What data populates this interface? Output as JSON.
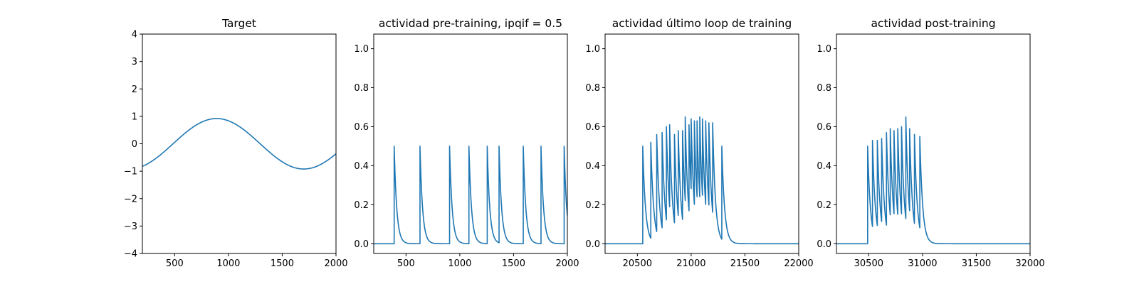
{
  "chart_data": [
    {
      "type": "line",
      "title": "Target",
      "xlabel": "",
      "ylabel": "",
      "xlim": [
        200,
        2000
      ],
      "ylim": [
        -4,
        4
      ],
      "xticks": [
        500,
        1000,
        1500,
        2000
      ],
      "yticks": [
        -4,
        -3,
        -2,
        -1,
        0,
        1,
        2,
        3,
        4
      ],
      "series": [
        {
          "kind": "sine",
          "amplitude": 0.92,
          "peak_x": 890,
          "period": 1620,
          "line_color": "#1f77b4"
        }
      ]
    },
    {
      "type": "line",
      "title": "actividad pre-training, ipqif = 0.5",
      "xlabel": "",
      "ylabel": "",
      "xlim": [
        200,
        2000
      ],
      "ylim": [
        -0.05,
        1.075
      ],
      "xticks": [
        500,
        1000,
        1500,
        2000
      ],
      "yticks": [
        0.0,
        0.2,
        0.4,
        0.6,
        0.8,
        1.0
      ],
      "series": [
        {
          "kind": "spikes",
          "baseline": 0,
          "decay": 24,
          "line_color": "#1f77b4",
          "spikes": [
            {
              "t": 390,
              "peak": 0.5
            },
            {
              "t": 630,
              "peak": 0.5
            },
            {
              "t": 905,
              "peak": 0.5
            },
            {
              "t": 1085,
              "peak": 0.5
            },
            {
              "t": 1255,
              "peak": 0.5
            },
            {
              "t": 1365,
              "peak": 0.5
            },
            {
              "t": 1590,
              "peak": 0.5
            },
            {
              "t": 1755,
              "peak": 0.5
            },
            {
              "t": 1970,
              "peak": 0.5
            }
          ]
        }
      ]
    },
    {
      "type": "line",
      "title": "actividad último loop de training",
      "xlabel": "",
      "ylabel": "",
      "xlim": [
        20200,
        22000
      ],
      "ylim": [
        -0.05,
        1.075
      ],
      "xticks": [
        20500,
        21000,
        21500,
        22000
      ],
      "yticks": [
        0.0,
        0.2,
        0.4,
        0.6,
        0.8,
        1.0
      ],
      "series": [
        {
          "kind": "spikes",
          "baseline": 0,
          "decay": 26,
          "line_color": "#1f77b4",
          "spikes": [
            {
              "t": 20550,
              "peak": 0.5
            },
            {
              "t": 20625,
              "peak": 0.52
            },
            {
              "t": 20680,
              "peak": 0.56
            },
            {
              "t": 20730,
              "peak": 0.57
            },
            {
              "t": 20770,
              "peak": 0.6
            },
            {
              "t": 20800,
              "peak": 0.61
            },
            {
              "t": 20845,
              "peak": 0.56
            },
            {
              "t": 20880,
              "peak": 0.58
            },
            {
              "t": 20920,
              "peak": 0.58
            },
            {
              "t": 20945,
              "peak": 0.65
            },
            {
              "t": 20980,
              "peak": 0.61
            },
            {
              "t": 21000,
              "peak": 0.64
            },
            {
              "t": 21030,
              "peak": 0.63
            },
            {
              "t": 21055,
              "peak": 0.63
            },
            {
              "t": 21080,
              "peak": 0.65
            },
            {
              "t": 21105,
              "peak": 0.64
            },
            {
              "t": 21135,
              "peak": 0.63
            },
            {
              "t": 21165,
              "peak": 0.62
            },
            {
              "t": 21200,
              "peak": 0.62
            },
            {
              "t": 21285,
              "peak": 0.5
            }
          ]
        }
      ]
    },
    {
      "type": "line",
      "title": "actividad post-training",
      "xlabel": "",
      "ylabel": "",
      "xlim": [
        30200,
        32000
      ],
      "ylim": [
        -0.05,
        1.075
      ],
      "xticks": [
        30500,
        31000,
        31500,
        32000
      ],
      "yticks": [
        0.0,
        0.2,
        0.4,
        0.6,
        0.8,
        1.0
      ],
      "series": [
        {
          "kind": "spikes",
          "baseline": 0,
          "decay": 26,
          "line_color": "#1f77b4",
          "spikes": [
            {
              "t": 30490,
              "peak": 0.5
            },
            {
              "t": 30535,
              "peak": 0.53
            },
            {
              "t": 30580,
              "peak": 0.53
            },
            {
              "t": 30620,
              "peak": 0.54
            },
            {
              "t": 30665,
              "peak": 0.57
            },
            {
              "t": 30700,
              "peak": 0.59
            },
            {
              "t": 30735,
              "peak": 0.58
            },
            {
              "t": 30770,
              "peak": 0.59
            },
            {
              "t": 30805,
              "peak": 0.6
            },
            {
              "t": 30845,
              "peak": 0.65
            },
            {
              "t": 30880,
              "peak": 0.59
            },
            {
              "t": 30925,
              "peak": 0.56
            },
            {
              "t": 30975,
              "peak": 0.55
            }
          ]
        }
      ]
    }
  ]
}
